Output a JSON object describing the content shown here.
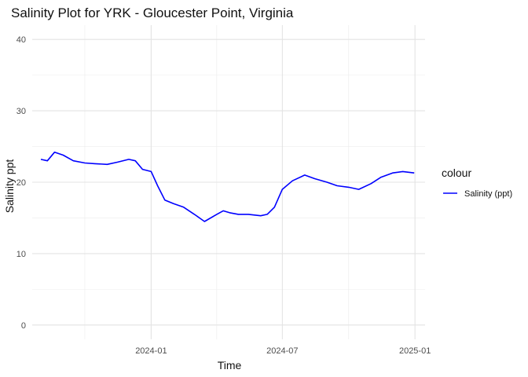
{
  "chart_data": {
    "type": "line",
    "title": "Salinity Plot for YRK - Gloucester Point, Virginia",
    "xlabel": "Time",
    "ylabel": "Salinity ppt",
    "x_range": [
      "2023-07-20",
      "2025-01-15"
    ],
    "ylim": [
      -2,
      42
    ],
    "x_ticks": [
      {
        "date": "2024-01-01",
        "label": "2024-01"
      },
      {
        "date": "2024-07-01",
        "label": "2024-07"
      },
      {
        "date": "2025-01-01",
        "label": "2025-01"
      }
    ],
    "x_minor_ticks": [
      "2023-10-01",
      "2024-04-01",
      "2024-10-01"
    ],
    "y_ticks": [
      0,
      10,
      20,
      30,
      40
    ],
    "y_minor_ticks": [
      5,
      15,
      25,
      35
    ],
    "grid": true,
    "legend": {
      "title": "colour",
      "position": "right"
    },
    "series": [
      {
        "name": "Salinity (ppt)",
        "color": "#0000ff",
        "x": [
          "2023-08-01",
          "2023-08-10",
          "2023-08-20",
          "2023-09-01",
          "2023-09-15",
          "2023-10-01",
          "2023-10-15",
          "2023-11-01",
          "2023-11-15",
          "2023-12-01",
          "2023-12-10",
          "2023-12-20",
          "2024-01-01",
          "2024-01-10",
          "2024-01-20",
          "2024-02-01",
          "2024-02-15",
          "2024-03-01",
          "2024-03-15",
          "2024-04-01",
          "2024-04-10",
          "2024-04-20",
          "2024-05-01",
          "2024-05-15",
          "2024-06-01",
          "2024-06-10",
          "2024-06-20",
          "2024-07-01",
          "2024-07-15",
          "2024-08-01",
          "2024-08-15",
          "2024-09-01",
          "2024-09-15",
          "2024-10-01",
          "2024-10-15",
          "2024-11-01",
          "2024-11-15",
          "2024-12-01",
          "2024-12-15",
          "2024-12-31"
        ],
        "values": [
          23.2,
          23.0,
          24.2,
          23.8,
          23.0,
          22.7,
          22.6,
          22.5,
          22.8,
          23.2,
          23.0,
          21.8,
          21.5,
          19.5,
          17.5,
          17.0,
          16.5,
          15.5,
          14.5,
          15.5,
          16.0,
          15.7,
          15.5,
          15.5,
          15.3,
          15.5,
          16.5,
          19.0,
          20.2,
          21.0,
          20.5,
          20.0,
          19.5,
          19.3,
          19.0,
          19.8,
          20.7,
          21.3,
          21.5,
          21.3
        ]
      }
    ]
  }
}
